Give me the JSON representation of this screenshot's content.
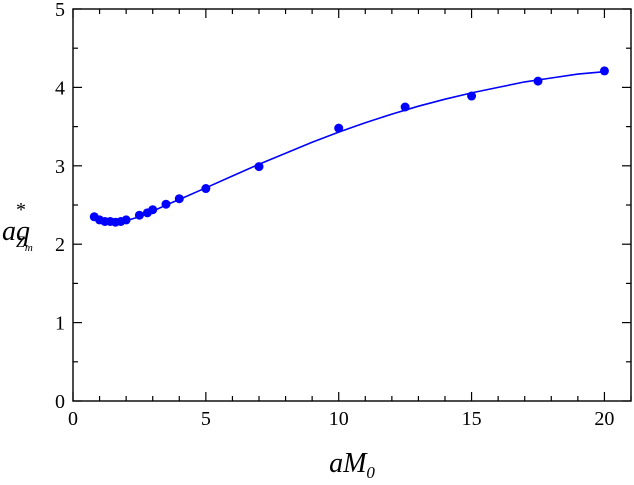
{
  "chart_data": {
    "type": "scatter",
    "title": "",
    "xlabel": {
      "main": "aM",
      "sub": "0"
    },
    "ylabel": {
      "main": "aq",
      "sup": "*",
      "sub": "Z",
      "subsub": "m"
    },
    "xlim": [
      0,
      21
    ],
    "ylim": [
      0,
      5
    ],
    "xticks": [
      0,
      5,
      10,
      15,
      20
    ],
    "yticks": [
      0,
      1,
      2,
      3,
      4,
      5
    ],
    "grid": false,
    "colors": {
      "series": "#0000ff",
      "axes": "#000000"
    },
    "series": [
      {
        "kind": "points",
        "x": [
          0.8,
          1.0,
          1.2,
          1.4,
          1.6,
          1.8,
          2.0,
          2.5,
          2.8,
          3.0,
          3.5,
          4.0,
          5.0,
          7.0,
          10.0,
          12.5,
          15.0,
          17.5,
          20.0
        ],
        "y": [
          2.35,
          2.31,
          2.29,
          2.29,
          2.28,
          2.29,
          2.31,
          2.37,
          2.4,
          2.44,
          2.51,
          2.58,
          2.71,
          2.99,
          3.48,
          3.75,
          3.89,
          4.08,
          4.21
        ]
      },
      {
        "kind": "line",
        "x": [
          0.8,
          1.0,
          1.2,
          1.4,
          1.6,
          1.8,
          2.0,
          2.5,
          3.0,
          3.5,
          4.0,
          5.0,
          6.0,
          7.0,
          8.0,
          9.0,
          10.0,
          11.0,
          12.0,
          13.0,
          14.0,
          15.0,
          16.0,
          17.0,
          18.0,
          19.0,
          20.0
        ],
        "y": [
          2.36,
          2.32,
          2.3,
          2.29,
          2.29,
          2.29,
          2.3,
          2.35,
          2.42,
          2.5,
          2.57,
          2.72,
          2.87,
          3.02,
          3.16,
          3.3,
          3.43,
          3.55,
          3.66,
          3.76,
          3.85,
          3.93,
          4.0,
          4.07,
          4.12,
          4.17,
          4.2
        ]
      }
    ]
  }
}
